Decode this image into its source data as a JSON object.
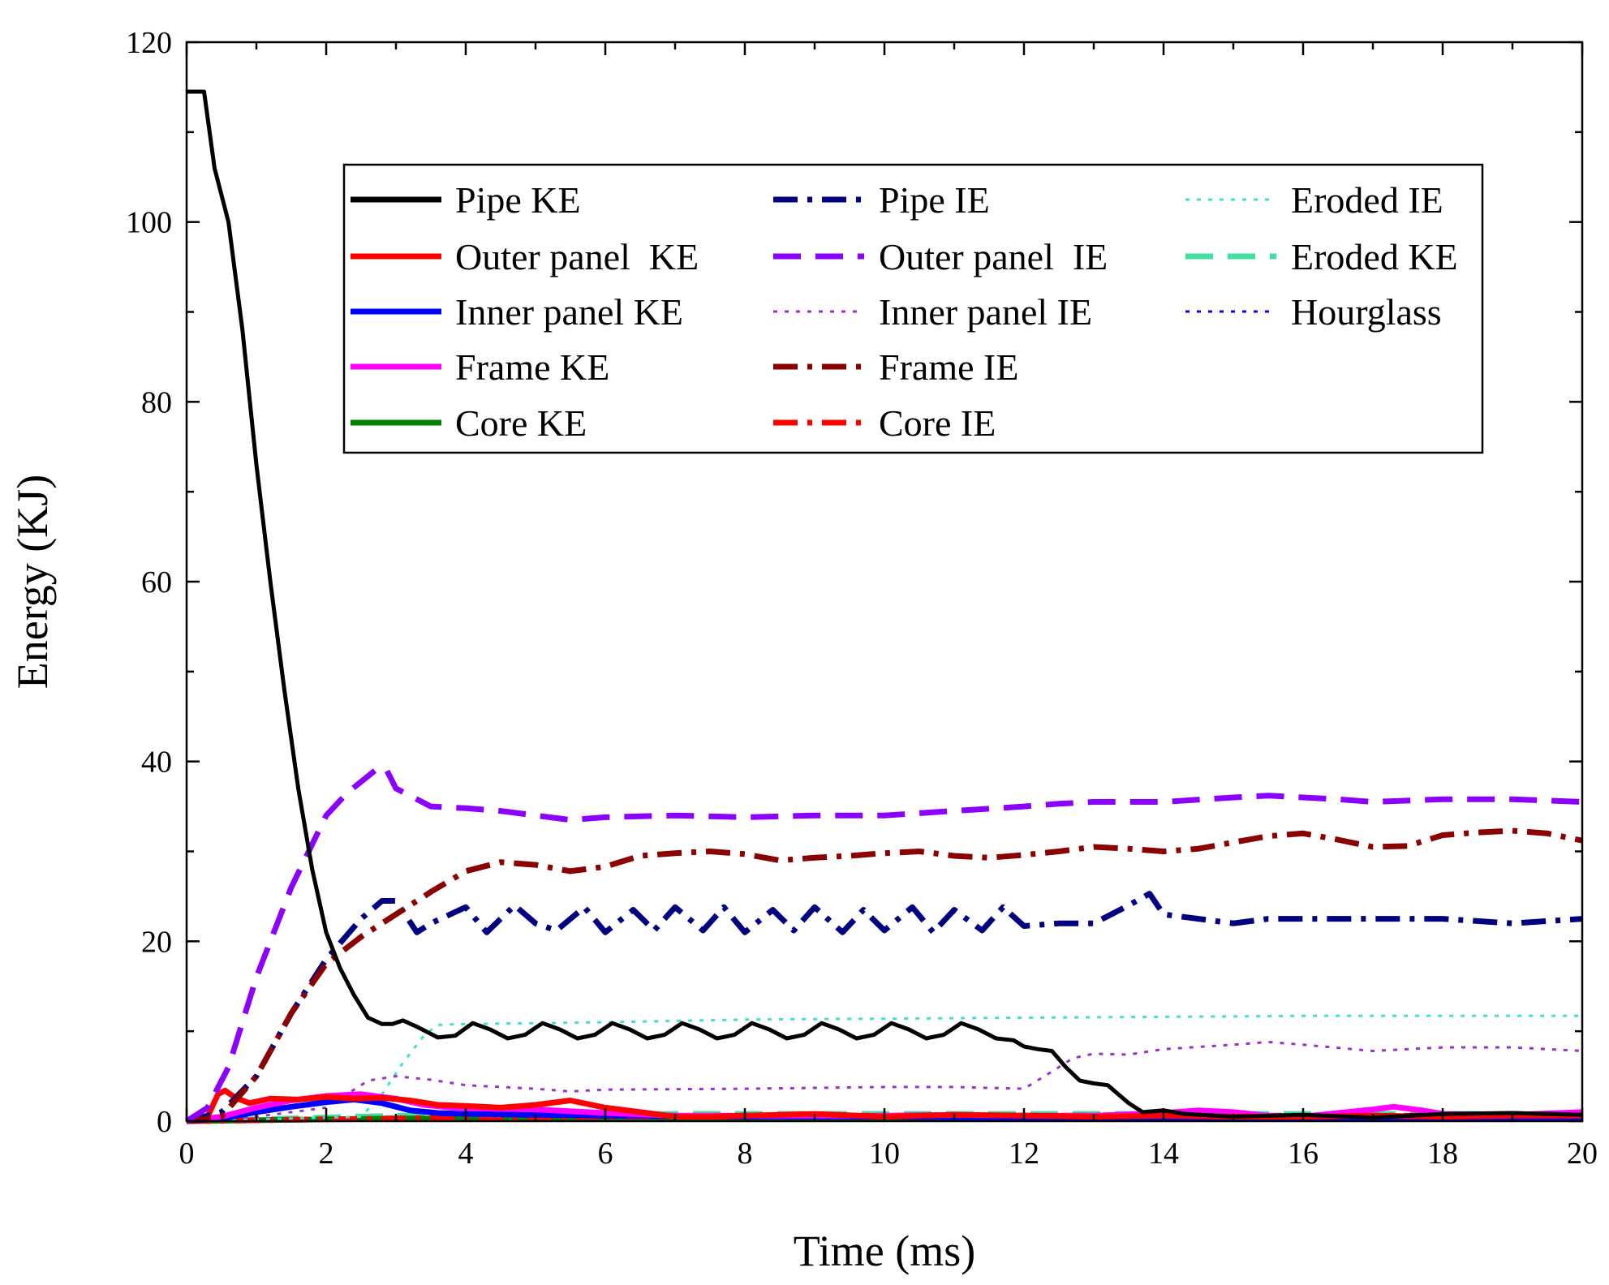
{
  "chart_data": {
    "type": "line",
    "title": "",
    "xlabel": "Time (ms)",
    "ylabel": "Energy (KJ)",
    "xlim": [
      0,
      20
    ],
    "ylim": [
      0,
      120
    ],
    "xticks": [
      0,
      2,
      4,
      6,
      8,
      10,
      12,
      14,
      16,
      18,
      20
    ],
    "yticks": [
      0,
      20,
      40,
      60,
      80,
      100,
      120
    ],
    "xtick_labels": [
      "0",
      "2",
      "4",
      "6",
      "8",
      "10",
      "12",
      "14",
      "16",
      "18",
      "20"
    ],
    "ytick_labels": [
      "0",
      "20",
      "40",
      "60",
      "80",
      "100",
      "120"
    ],
    "grid": false,
    "legend_position": "top-right",
    "series": [
      {
        "name": "Pipe KE",
        "color": "#000000",
        "style": "solid",
        "x": [
          0,
          0.25,
          0.4,
          0.6,
          0.8,
          1.0,
          1.2,
          1.4,
          1.6,
          1.8,
          2.0,
          2.2,
          2.4,
          2.6,
          2.8,
          2.95,
          3.1,
          3.3,
          3.6,
          3.85,
          4.1,
          4.35,
          4.6,
          4.85,
          5.1,
          5.35,
          5.6,
          5.85,
          6.1,
          6.35,
          6.6,
          6.85,
          7.1,
          7.35,
          7.6,
          7.85,
          8.1,
          8.35,
          8.6,
          8.85,
          9.1,
          9.35,
          9.6,
          9.85,
          10.1,
          10.35,
          10.6,
          10.85,
          11.1,
          11.35,
          11.6,
          11.85,
          12.0,
          12.2,
          12.4,
          12.6,
          12.8,
          13.0,
          13.2,
          13.5,
          13.7,
          14.0,
          14.3,
          15.0,
          16.0,
          17.0,
          18.0,
          19.0,
          20.0
        ],
        "y": [
          114.5,
          114.5,
          106,
          100,
          88,
          73,
          60,
          48,
          37,
          28,
          21,
          17,
          14,
          11.5,
          10.8,
          10.8,
          11.2,
          10.5,
          9.3,
          9.5,
          10.9,
          10.2,
          9.2,
          9.6,
          10.9,
          10.2,
          9.2,
          9.6,
          10.9,
          10.2,
          9.2,
          9.6,
          10.9,
          10.2,
          9.2,
          9.6,
          10.9,
          10.2,
          9.2,
          9.6,
          10.9,
          10.2,
          9.2,
          9.6,
          10.9,
          10.2,
          9.2,
          9.6,
          10.9,
          10.2,
          9.2,
          9.0,
          8.3,
          8.0,
          7.8,
          6.0,
          4.5,
          4.2,
          4.0,
          2.0,
          1.0,
          1.2,
          0.8,
          0.5,
          0.7,
          0.4,
          0.8,
          0.9,
          0.7
        ]
      },
      {
        "name": "Outer panel  KE",
        "color": "#ff0000",
        "style": "solid",
        "x": [
          0,
          0.3,
          0.45,
          0.55,
          0.7,
          0.9,
          1.2,
          1.6,
          2.0,
          2.4,
          2.8,
          3.2,
          3.6,
          4.0,
          4.5,
          5.0,
          5.5,
          6.0,
          6.5,
          7.0,
          7.5,
          8.0,
          9.0,
          10.0,
          11.0,
          12.0,
          13.0,
          14.0,
          15.0,
          16.0,
          17.0,
          18.0,
          19.0,
          20.0
        ],
        "y": [
          0,
          0.5,
          3.0,
          3.4,
          2.6,
          2.0,
          2.5,
          2.4,
          2.7,
          2.5,
          2.6,
          2.3,
          1.8,
          1.7,
          1.5,
          1.8,
          2.3,
          1.5,
          1.0,
          0.5,
          0.5,
          0.6,
          0.8,
          0.5,
          0.7,
          0.6,
          0.5,
          0.6,
          0.5,
          0.5,
          0.6,
          0.5,
          0.6,
          0.6
        ]
      },
      {
        "name": "Inner panel KE",
        "color": "#0000ff",
        "style": "solid",
        "x": [
          0,
          0.5,
          1.0,
          1.5,
          2.0,
          2.4,
          2.8,
          3.2,
          3.6,
          4.0,
          5.0,
          6.0,
          8.0,
          10.0,
          12.0,
          14.0,
          16.0,
          18.0,
          20.0
        ],
        "y": [
          0,
          0.3,
          1.0,
          1.6,
          2.1,
          2.4,
          2.0,
          1.2,
          0.9,
          0.8,
          0.7,
          0.6,
          0.5,
          0.5,
          0.4,
          0.4,
          0.4,
          0.4,
          0.4
        ]
      },
      {
        "name": "Frame KE",
        "color": "#ff00ff",
        "style": "solid",
        "x": [
          0,
          0.5,
          1.0,
          1.5,
          2.0,
          2.5,
          3.0,
          3.4,
          3.8,
          4.2,
          5.0,
          6.0,
          7.0,
          8.0,
          9.0,
          10.0,
          11.0,
          12.0,
          13.0,
          14.0,
          14.5,
          15.0,
          15.5,
          16.0,
          16.5,
          17.0,
          17.3,
          17.7,
          18.0,
          19.0,
          20.0
        ],
        "y": [
          0,
          0.5,
          1.5,
          2.3,
          2.8,
          3.0,
          2.5,
          1.8,
          1.5,
          1.4,
          1.3,
          0.9,
          0.6,
          0.6,
          0.6,
          0.6,
          0.7,
          0.6,
          0.6,
          0.9,
          1.2,
          1.0,
          0.6,
          0.5,
          0.9,
          1.3,
          1.6,
          1.2,
          0.8,
          0.7,
          1.0
        ]
      },
      {
        "name": "Core KE",
        "color": "#008000",
        "style": "solid",
        "x": [
          0,
          1.0,
          2.0,
          3.0,
          4.0,
          6.0,
          8.0,
          10.0,
          12.0,
          14.0,
          16.0,
          18.0,
          20.0
        ],
        "y": [
          0,
          0.1,
          0.2,
          0.3,
          0.3,
          0.3,
          0.3,
          0.3,
          0.3,
          0.3,
          0.3,
          0.3,
          0.3
        ]
      },
      {
        "name": "Pipe IE",
        "color": "#000080",
        "style": "dashdot",
        "x": [
          0,
          0.5,
          1.0,
          1.5,
          2.0,
          2.5,
          2.8,
          3.0,
          3.3,
          3.5,
          4.0,
          4.3,
          4.7,
          5.0,
          5.3,
          5.7,
          6.0,
          6.4,
          6.7,
          7.0,
          7.4,
          7.7,
          8.0,
          8.4,
          8.7,
          9.0,
          9.4,
          9.7,
          10.0,
          10.4,
          10.7,
          11.0,
          11.4,
          11.7,
          12.0,
          12.5,
          13.0,
          13.5,
          13.8,
          14.0,
          14.5,
          15.0,
          15.5,
          16.0,
          17.0,
          18.0,
          19.0,
          20.0
        ],
        "y": [
          0,
          1.0,
          5.0,
          12.0,
          18.0,
          22.5,
          24.5,
          24.5,
          21.0,
          22.0,
          23.8,
          21.0,
          24.0,
          22.0,
          21.2,
          23.8,
          21.0,
          23.5,
          21.2,
          23.8,
          21.2,
          23.8,
          21.0,
          23.5,
          21.2,
          23.8,
          21.0,
          23.5,
          21.2,
          23.8,
          21.0,
          23.5,
          21.2,
          23.8,
          21.7,
          22.0,
          22.0,
          24.0,
          25.3,
          23.0,
          22.5,
          22.0,
          22.5,
          22.5,
          22.5,
          22.5,
          22.0,
          22.5
        ]
      },
      {
        "name": "Outer panel  IE",
        "color": "#8b00ff",
        "style": "dashed",
        "x": [
          0,
          0.3,
          0.6,
          1.0,
          1.5,
          2.0,
          2.3,
          2.7,
          2.85,
          3.0,
          3.5,
          4.0,
          4.5,
          5.0,
          5.5,
          6.0,
          7.0,
          8.0,
          9.0,
          10.0,
          11.0,
          12.0,
          12.5,
          13.0,
          14.0,
          15.0,
          15.5,
          16.0,
          16.5,
          17.0,
          18.0,
          19.0,
          20.0
        ],
        "y": [
          0,
          1.5,
          6.0,
          16.0,
          26.0,
          34.0,
          36.5,
          39.0,
          39.3,
          37.0,
          35.0,
          34.8,
          34.5,
          34.0,
          33.5,
          33.8,
          34.0,
          33.8,
          34.0,
          34.0,
          34.5,
          35.0,
          35.3,
          35.5,
          35.5,
          36.0,
          36.2,
          36.0,
          35.8,
          35.5,
          35.8,
          35.8,
          35.5
        ]
      },
      {
        "name": "Inner panel IE",
        "color": "#9932cc",
        "style": "dotted",
        "x": [
          0,
          1.0,
          2.0,
          2.6,
          3.0,
          3.5,
          4.0,
          4.5,
          5.0,
          5.5,
          6.0,
          8.0,
          10.0,
          11.0,
          12.0,
          12.4,
          12.7,
          13.0,
          13.5,
          14.0,
          15.0,
          15.5,
          16.0,
          17.0,
          18.0,
          19.0,
          20.0
        ],
        "y": [
          0,
          0.5,
          1.5,
          4.5,
          5.0,
          4.6,
          4.0,
          3.8,
          3.6,
          3.3,
          3.5,
          3.6,
          3.8,
          3.8,
          3.6,
          5.5,
          7.0,
          7.5,
          7.4,
          8.0,
          8.5,
          8.8,
          8.5,
          7.8,
          8.2,
          8.2,
          7.8
        ]
      },
      {
        "name": "Frame IE",
        "color": "#8b0000",
        "style": "dashdot",
        "x": [
          0,
          0.5,
          1.0,
          1.5,
          2.0,
          2.5,
          3.0,
          3.5,
          4.0,
          4.5,
          5.0,
          5.5,
          6.0,
          6.5,
          7.0,
          7.5,
          8.0,
          8.5,
          9.0,
          9.5,
          10.0,
          10.5,
          11.0,
          11.5,
          12.0,
          12.5,
          13.0,
          13.5,
          14.0,
          14.5,
          15.0,
          15.5,
          16.0,
          16.5,
          17.0,
          17.5,
          18.0,
          18.5,
          19.0,
          19.5,
          20.0
        ],
        "y": [
          0,
          0.5,
          5.0,
          12.0,
          17.5,
          20.5,
          23.0,
          25.5,
          27.8,
          28.8,
          28.5,
          27.8,
          28.3,
          29.5,
          29.8,
          30.0,
          29.7,
          29.0,
          29.3,
          29.5,
          29.8,
          30.0,
          29.5,
          29.3,
          29.6,
          30.0,
          30.5,
          30.3,
          30.0,
          30.3,
          31.0,
          31.7,
          32.0,
          31.3,
          30.5,
          30.6,
          31.8,
          32.1,
          32.3,
          32.0,
          31.2
        ]
      },
      {
        "name": "Core IE",
        "color": "#ff0000",
        "style": "dashdot",
        "x": [
          0,
          2.0,
          4.0,
          6.0,
          8.0,
          10.0,
          12.0,
          14.0,
          16.0,
          18.0,
          20.0
        ],
        "y": [
          0,
          0.2,
          0.4,
          0.5,
          0.5,
          0.5,
          0.6,
          0.6,
          0.6,
          0.6,
          0.6
        ]
      },
      {
        "name": "Eroded IE",
        "color": "#40e0d0",
        "style": "dotted",
        "x": [
          0,
          2.5,
          2.8,
          3.1,
          3.4,
          3.6,
          4.0,
          6.0,
          8.0,
          10.0,
          12.0,
          14.0,
          16.0,
          18.0,
          20.0
        ],
        "y": [
          0,
          0.5,
          3.0,
          6.5,
          9.5,
          10.7,
          10.8,
          11.0,
          11.3,
          11.4,
          11.5,
          11.6,
          11.7,
          11.7,
          11.7
        ]
      },
      {
        "name": "Eroded KE",
        "color": "#40e0a0",
        "style": "dashed",
        "x": [
          0,
          1.0,
          2.0,
          3.0,
          4.0,
          6.0,
          8.0,
          10.0,
          12.0,
          14.0,
          16.0,
          18.0,
          20.0
        ],
        "y": [
          0,
          0.2,
          0.4,
          0.6,
          0.7,
          0.8,
          0.8,
          0.8,
          0.8,
          0.8,
          0.8,
          0.8,
          0.8
        ]
      },
      {
        "name": "Hourglass",
        "color": "#0000ff",
        "style": "dotted",
        "x": [
          0,
          1.0,
          2.0,
          3.0,
          4.0,
          6.0,
          8.0,
          10.0,
          12.0,
          14.0,
          16.0,
          18.0,
          20.0
        ],
        "y": [
          0,
          0.1,
          0.2,
          0.3,
          0.3,
          0.3,
          0.3,
          0.3,
          0.3,
          0.3,
          0.3,
          0.3,
          0.3
        ]
      }
    ]
  }
}
